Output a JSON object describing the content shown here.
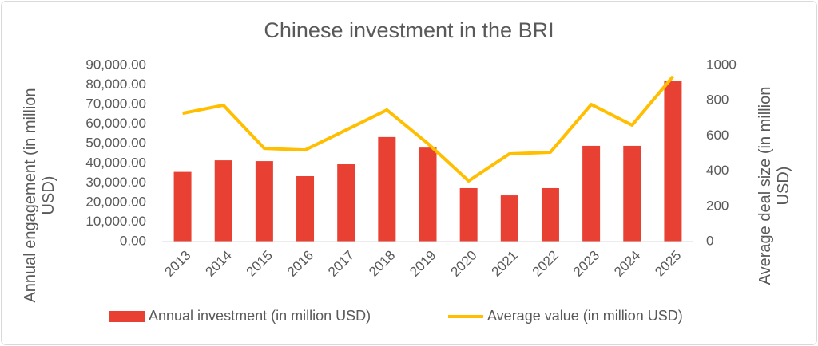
{
  "chart_data": {
    "type": "bar-line",
    "title": "Chinese investment in the BRI",
    "y_label": "Annual engagement (in million USD)",
    "y2_label": "Average deal size (in million USD)",
    "categories": [
      "2013",
      "2014",
      "2015",
      "2016",
      "2017",
      "2018",
      "2019",
      "2020",
      "2021",
      "2022",
      "2023",
      "2024",
      "2025"
    ],
    "series": [
      {
        "name": "Annual investment (in million USD)",
        "type": "bar",
        "color": "#e84133",
        "values": [
          35600,
          41500,
          41100,
          33400,
          39500,
          53400,
          48000,
          27300,
          23600,
          27300,
          48900,
          48900,
          81900
        ]
      },
      {
        "name": "Average value (in million USD)",
        "type": "line",
        "axis": "y2",
        "color": "#ffbf00",
        "values": [
          728,
          774,
          529,
          520,
          633,
          747,
          557,
          344,
          498,
          507,
          778,
          661,
          937
        ]
      }
    ],
    "ylim": [
      0,
      90000
    ],
    "yticks": [
      {
        "value": 0,
        "label": "0.00"
      },
      {
        "value": 10000,
        "label": "10,000.00"
      },
      {
        "value": 20000,
        "label": "20,000.00"
      },
      {
        "value": 30000,
        "label": "30,000.00"
      },
      {
        "value": 40000,
        "label": "40,000.00"
      },
      {
        "value": 50000,
        "label": "50,000.00"
      },
      {
        "value": 60000,
        "label": "60,000.00"
      },
      {
        "value": 70000,
        "label": "70,000.00"
      },
      {
        "value": 80000,
        "label": "80,000.00"
      },
      {
        "value": 90000,
        "label": "90,000.00"
      }
    ],
    "y2lim": [
      0,
      1000
    ],
    "y2ticks": [
      0,
      200,
      400,
      600,
      800,
      1000
    ],
    "legend": "bottom"
  }
}
